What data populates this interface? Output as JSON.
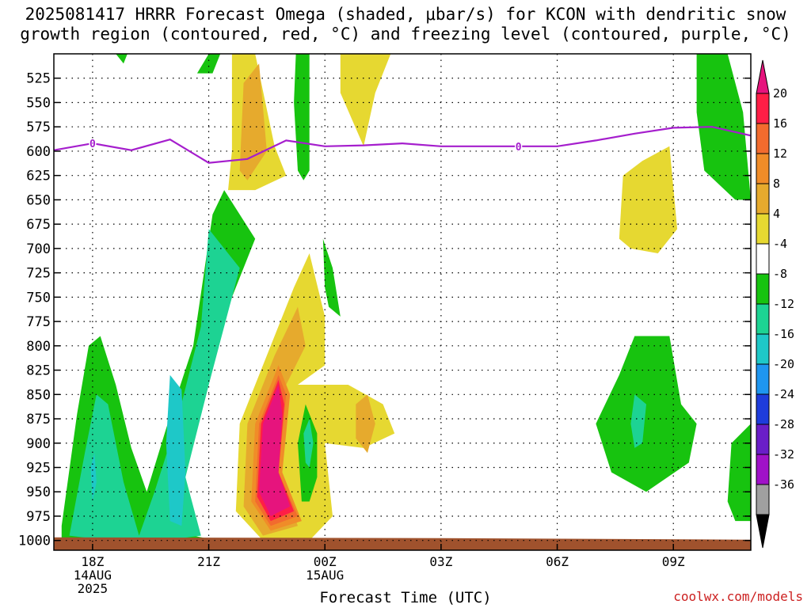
{
  "title_line1": "2025081417 HRRR Forecast Omega (shaded, μbar/s) for KCON with dendritic snow",
  "title_line2": "growth region (contoured, red, °C) and freezing level (contoured, purple, °C)",
  "credit": "coolwx.com/models",
  "chart_data": {
    "type": "heatmap",
    "title": "2025081417 HRRR Forecast Omega (shaded, μbar/s) for KCON with dendritic snow growth region (contoured, red, °C) and freezing level (contoured, purple, °C)",
    "xlabel": "Forecast Time (UTC)",
    "ylabel": "",
    "y_axis_inverted": true,
    "y_ticks": [
      525,
      550,
      575,
      600,
      625,
      650,
      675,
      700,
      725,
      750,
      775,
      800,
      825,
      850,
      875,
      900,
      925,
      950,
      975,
      1000
    ],
    "x_ticks": [
      {
        "hour": 18,
        "labels": [
          "18Z",
          "14AUG",
          "2025"
        ]
      },
      {
        "hour": 21,
        "labels": [
          "21Z"
        ]
      },
      {
        "hour": 24,
        "labels": [
          "00Z",
          "15AUG"
        ]
      },
      {
        "hour": 27,
        "labels": [
          "03Z"
        ]
      },
      {
        "hour": 30,
        "labels": [
          "06Z"
        ]
      },
      {
        "hour": 33,
        "labels": [
          "09Z"
        ]
      }
    ],
    "xlim": [
      17,
      35
    ],
    "ylim": [
      500,
      1010
    ],
    "grid": true,
    "colorbar": {
      "labels": [
        "20",
        "16",
        "12",
        "8",
        "4",
        "-4",
        "-8",
        "-12",
        "-16",
        "-20",
        "-24",
        "-28",
        "-32",
        "-36"
      ],
      "colors": [
        "#ff1e46",
        "#f26b2e",
        "#f08c28",
        "#e6aa2d",
        "#e6d831",
        "#ffffff",
        "#17c30f",
        "#1dd393",
        "#1ec8c8",
        "#1e96f0",
        "#1e3cdc",
        "#6a1ec8",
        "#a012c8",
        "#a0a0a0"
      ],
      "top_arrow_color": "#e6147d",
      "bottom_arrow_color": "#000000"
    },
    "freezing_level": {
      "label": "0",
      "color": "#a51ecd",
      "points": [
        [
          17,
          599
        ],
        [
          18,
          592
        ],
        [
          19,
          599
        ],
        [
          20,
          588
        ],
        [
          21,
          612
        ],
        [
          22,
          608
        ],
        [
          23,
          589
        ],
        [
          24,
          595
        ],
        [
          25,
          594
        ],
        [
          26,
          592
        ],
        [
          27,
          595
        ],
        [
          28,
          595
        ],
        [
          29,
          595
        ],
        [
          30,
          595
        ],
        [
          31,
          589
        ],
        [
          32,
          582
        ],
        [
          33,
          576
        ],
        [
          34,
          575
        ],
        [
          35,
          584
        ]
      ]
    },
    "omega_regions": [
      {
        "level": "-8",
        "color": "#17c30f",
        "points": [
          [
            17.2,
            985
          ],
          [
            17.6,
            870
          ],
          [
            17.9,
            800
          ],
          [
            18.2,
            790
          ],
          [
            18.6,
            840
          ],
          [
            19.0,
            905
          ],
          [
            19.4,
            950
          ],
          [
            19.9,
            885
          ],
          [
            20.6,
            800
          ],
          [
            21.1,
            665
          ],
          [
            21.4,
            640
          ],
          [
            22.2,
            690
          ],
          [
            21.6,
            750
          ],
          [
            21.0,
            830
          ],
          [
            20.2,
            950
          ],
          [
            20.6,
            995
          ],
          [
            21.2,
            1000
          ],
          [
            20.0,
            1000
          ],
          [
            18.6,
            1000
          ],
          [
            17.2,
            1000
          ]
        ]
      },
      {
        "level": "-12",
        "color": "#1dd393",
        "points": [
          [
            17.4,
            995
          ],
          [
            17.8,
            910
          ],
          [
            18.1,
            850
          ],
          [
            18.4,
            860
          ],
          [
            18.8,
            940
          ],
          [
            19.2,
            995
          ],
          [
            19.6,
            950
          ],
          [
            20.2,
            875
          ],
          [
            20.8,
            780
          ],
          [
            21.0,
            680
          ],
          [
            21.4,
            700
          ],
          [
            21.8,
            720
          ],
          [
            21.0,
            840
          ],
          [
            20.4,
            935
          ],
          [
            20.8,
            995
          ],
          [
            19.8,
            1000
          ],
          [
            18.4,
            1000
          ]
        ]
      },
      {
        "level": "-16",
        "color": "#1ec8c8",
        "points": [
          [
            20.0,
            980
          ],
          [
            19.9,
            900
          ],
          [
            20.0,
            830
          ],
          [
            20.3,
            845
          ],
          [
            20.4,
            930
          ],
          [
            20.3,
            985
          ]
        ]
      },
      {
        "level": "-16",
        "color": "#1ec8c8",
        "points": [
          [
            18.0,
            960
          ],
          [
            17.95,
            925
          ],
          [
            18.05,
            910
          ],
          [
            18.1,
            940
          ]
        ]
      },
      {
        "level": "4",
        "color": "#e6d831",
        "points": [
          [
            21.7,
            970
          ],
          [
            21.8,
            880
          ],
          [
            22.6,
            800
          ],
          [
            23.2,
            740
          ],
          [
            23.6,
            705
          ],
          [
            24.0,
            770
          ],
          [
            24.0,
            820
          ],
          [
            23.3,
            840
          ],
          [
            24.6,
            840
          ],
          [
            25.5,
            860
          ],
          [
            25.8,
            890
          ],
          [
            25.0,
            905
          ],
          [
            24.0,
            900
          ],
          [
            24.2,
            975
          ],
          [
            23.6,
            1000
          ],
          [
            22.4,
            1000
          ]
        ]
      },
      {
        "level": "8",
        "color": "#e6aa2d",
        "points": [
          [
            21.9,
            965
          ],
          [
            22.0,
            880
          ],
          [
            22.7,
            810
          ],
          [
            23.3,
            760
          ],
          [
            23.5,
            800
          ],
          [
            23.0,
            840
          ],
          [
            22.6,
            900
          ],
          [
            23.3,
            985
          ],
          [
            22.4,
            995
          ]
        ]
      },
      {
        "level": "8",
        "color": "#e6aa2d",
        "points": [
          [
            24.8,
            860
          ],
          [
            25.1,
            850
          ],
          [
            25.3,
            880
          ],
          [
            25.1,
            910
          ],
          [
            24.8,
            895
          ]
        ]
      },
      {
        "level": "12",
        "color": "#f08c28",
        "points": [
          [
            22.1,
            960
          ],
          [
            22.2,
            880
          ],
          [
            22.8,
            820
          ],
          [
            23.1,
            850
          ],
          [
            22.9,
            930
          ],
          [
            23.4,
            980
          ],
          [
            22.6,
            990
          ]
        ]
      },
      {
        "level": "16",
        "color": "#f26b2e",
        "points": [
          [
            22.2,
            960
          ],
          [
            22.3,
            880
          ],
          [
            22.8,
            830
          ],
          [
            23.0,
            850
          ],
          [
            22.8,
            930
          ],
          [
            23.3,
            975
          ],
          [
            22.6,
            985
          ]
        ]
      },
      {
        "level": "20",
        "color": "#ff1e46",
        "points": [
          [
            22.25,
            955
          ],
          [
            22.35,
            880
          ],
          [
            22.8,
            835
          ],
          [
            22.95,
            860
          ],
          [
            22.8,
            930
          ],
          [
            23.2,
            970
          ],
          [
            22.6,
            980
          ]
        ]
      },
      {
        "level": ">20",
        "color": "#e6147d",
        "points": [
          [
            22.3,
            950
          ],
          [
            22.4,
            880
          ],
          [
            22.8,
            840
          ],
          [
            22.9,
            870
          ],
          [
            22.8,
            930
          ],
          [
            23.1,
            965
          ],
          [
            22.6,
            975
          ]
        ]
      },
      {
        "level": "-8",
        "color": "#17c30f",
        "points": [
          [
            23.4,
            960
          ],
          [
            23.3,
            900
          ],
          [
            23.5,
            860
          ],
          [
            23.8,
            890
          ],
          [
            23.8,
            935
          ],
          [
            23.6,
            960
          ]
        ]
      },
      {
        "level": "-12",
        "color": "#1dd393",
        "points": [
          [
            23.5,
            920
          ],
          [
            23.45,
            890
          ],
          [
            23.6,
            875
          ],
          [
            23.7,
            900
          ],
          [
            23.6,
            925
          ]
        ]
      },
      {
        "level": "-8",
        "color": "#17c30f",
        "points": [
          [
            24.0,
            740
          ],
          [
            23.95,
            690
          ],
          [
            24.2,
            720
          ],
          [
            24.4,
            770
          ],
          [
            24.1,
            760
          ]
        ]
      },
      {
        "level": "4",
        "color": "#e6d831",
        "points": [
          [
            21.5,
            640
          ],
          [
            21.6,
            600
          ],
          [
            21.6,
            500
          ],
          [
            22.2,
            500
          ],
          [
            22.7,
            595
          ],
          [
            23.0,
            625
          ],
          [
            22.2,
            640
          ]
        ]
      },
      {
        "level": "8",
        "color": "#e6aa2d",
        "points": [
          [
            21.8,
            620
          ],
          [
            21.9,
            530
          ],
          [
            22.3,
            510
          ],
          [
            22.5,
            600
          ],
          [
            22.0,
            630
          ]
        ]
      },
      {
        "level": "-8",
        "color": "#17c30f",
        "points": [
          [
            23.3,
            620
          ],
          [
            23.2,
            550
          ],
          [
            23.25,
            500
          ],
          [
            23.6,
            500
          ],
          [
            23.6,
            620
          ],
          [
            23.45,
            630
          ]
        ]
      },
      {
        "level": "4",
        "color": "#e6d831",
        "points": [
          [
            24.4,
            500
          ],
          [
            25.7,
            500
          ],
          [
            25.3,
            540
          ],
          [
            25.0,
            595
          ],
          [
            24.4,
            540
          ]
        ]
      },
      {
        "level": "-8",
        "color": "#17c30f",
        "points": [
          [
            20.7,
            520
          ],
          [
            21.0,
            500
          ],
          [
            21.3,
            500
          ],
          [
            21.1,
            520
          ]
        ]
      },
      {
        "level": "-8",
        "color": "#17c30f",
        "points": [
          [
            18.6,
            500
          ],
          [
            18.9,
            500
          ],
          [
            18.8,
            510
          ]
        ]
      },
      {
        "level": "-8",
        "color": "#17c30f",
        "points": [
          [
            33.6,
            500
          ],
          [
            34.4,
            500
          ],
          [
            34.8,
            560
          ],
          [
            35,
            650
          ],
          [
            34.6,
            650
          ],
          [
            33.8,
            620
          ],
          [
            33.6,
            560
          ]
        ]
      },
      {
        "level": "4",
        "color": "#e6d831",
        "points": [
          [
            31.6,
            690
          ],
          [
            31.7,
            625
          ],
          [
            32.2,
            610
          ],
          [
            32.9,
            595
          ],
          [
            33.1,
            680
          ],
          [
            32.6,
            705
          ],
          [
            31.9,
            700
          ]
        ]
      },
      {
        "level": "-8",
        "color": "#17c30f",
        "points": [
          [
            31.0,
            880
          ],
          [
            31.6,
            830
          ],
          [
            32.0,
            790
          ],
          [
            32.9,
            790
          ],
          [
            33.2,
            860
          ],
          [
            33.6,
            880
          ],
          [
            33.4,
            920
          ],
          [
            32.3,
            950
          ],
          [
            31.4,
            930
          ]
        ]
      },
      {
        "level": "-12",
        "color": "#1dd393",
        "points": [
          [
            31.9,
            880
          ],
          [
            32.0,
            850
          ],
          [
            32.3,
            860
          ],
          [
            32.2,
            900
          ],
          [
            32.0,
            905
          ]
        ]
      },
      {
        "level": "-8",
        "color": "#17c30f",
        "points": [
          [
            34.4,
            960
          ],
          [
            34.5,
            900
          ],
          [
            35,
            880
          ],
          [
            35,
            980
          ],
          [
            34.6,
            980
          ]
        ]
      }
    ],
    "surface_color": "#a0522d"
  }
}
